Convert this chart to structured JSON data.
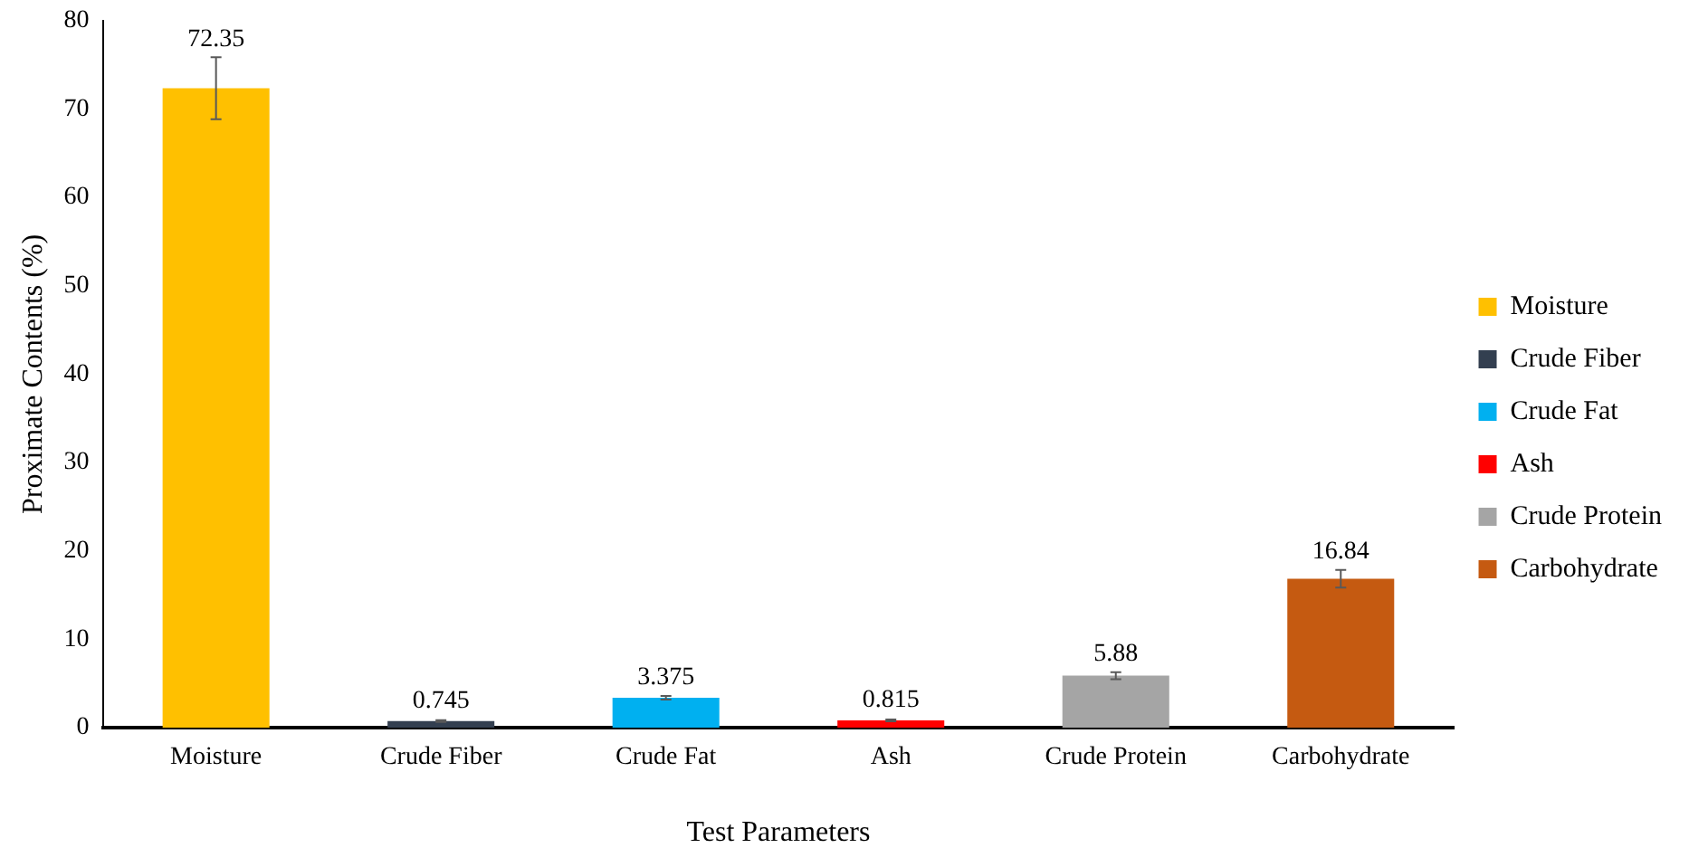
{
  "chart_data": {
    "type": "bar",
    "xlabel": "Test Parameters",
    "ylabel": "Proximate Contents (%)",
    "categories": [
      "Moisture",
      "Crude Fiber",
      "Crude Fat",
      "Ash",
      "Crude Protein",
      "Carbohydrate"
    ],
    "series": [
      {
        "name": "Moisture",
        "color": "#ffc000",
        "values": [
          72.35,
          null,
          null,
          null,
          null,
          null
        ],
        "errors": [
          3.5,
          null,
          null,
          null,
          null,
          null
        ]
      },
      {
        "name": "Crude Fiber",
        "color": "#333f50",
        "values": [
          null,
          0.745,
          null,
          null,
          null,
          null
        ],
        "errors": [
          null,
          0.1,
          null,
          null,
          null,
          null
        ]
      },
      {
        "name": "Crude Fat",
        "color": "#00b0f0",
        "values": [
          null,
          null,
          3.375,
          null,
          null,
          null
        ],
        "errors": [
          null,
          null,
          0.2,
          null,
          null,
          null
        ]
      },
      {
        "name": "Ash",
        "color": "#ff0000",
        "values": [
          null,
          null,
          null,
          0.815,
          null,
          null
        ],
        "errors": [
          null,
          null,
          null,
          0.1,
          null,
          null
        ]
      },
      {
        "name": "Crude Protein",
        "color": "#a5a5a5",
        "values": [
          null,
          null,
          null,
          null,
          5.88,
          null
        ],
        "errors": [
          null,
          null,
          null,
          null,
          0.4,
          null
        ]
      },
      {
        "name": "Carbohydrate",
        "color": "#c55a11",
        "values": [
          null,
          null,
          null,
          null,
          null,
          16.84
        ],
        "errors": [
          null,
          null,
          null,
          null,
          null,
          1
        ]
      }
    ],
    "ylim": [
      0,
      80
    ],
    "yticks": [
      0,
      10,
      20,
      30,
      40,
      50,
      60,
      70,
      80
    ],
    "grid": false,
    "legend": "right",
    "data_labels": true
  }
}
